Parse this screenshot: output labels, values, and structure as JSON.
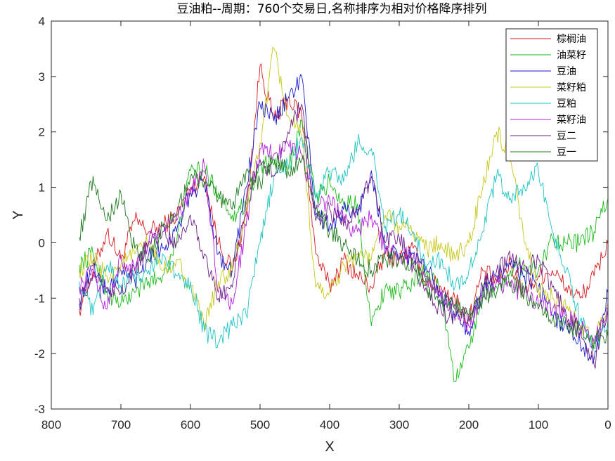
{
  "chart_data": {
    "type": "line",
    "title": "豆油粕--周期：760个交易日,名称排序为相对价格降序排列",
    "xlabel": "X",
    "ylabel": "Y",
    "xlim": [
      800,
      0
    ],
    "ylim": [
      -3,
      4
    ],
    "x_reversed": true,
    "xticks": [
      "800",
      "700",
      "600",
      "500",
      "400",
      "300",
      "200",
      "100",
      "0"
    ],
    "yticks": [
      "-3",
      "-2",
      "-1",
      "0",
      "1",
      "2",
      "3",
      "4"
    ],
    "grid": false,
    "legend_position": "top-right",
    "x": [
      760,
      740,
      720,
      700,
      680,
      660,
      640,
      620,
      600,
      580,
      560,
      540,
      520,
      500,
      480,
      460,
      440,
      420,
      400,
      380,
      360,
      340,
      320,
      300,
      280,
      260,
      240,
      220,
      200,
      180,
      160,
      140,
      120,
      100,
      80,
      60,
      40,
      20,
      0
    ],
    "series": [
      {
        "name": "棕榈油",
        "color": "#d7191c",
        "values": [
          -1.2,
          -0.5,
          0.2,
          -0.3,
          0.4,
          0.2,
          0.3,
          0.5,
          1.0,
          1.2,
          0.0,
          -0.5,
          0.5,
          3.2,
          2.2,
          2.6,
          2.3,
          -0.2,
          -0.8,
          -0.3,
          -0.6,
          -0.8,
          -0.2,
          -0.3,
          -0.1,
          -0.7,
          -0.8,
          -1.0,
          -1.4,
          -0.5,
          -0.7,
          -0.4,
          -0.9,
          -0.6,
          -0.5,
          -0.8,
          -1.0,
          -0.6,
          0.0
        ]
      },
      {
        "name": "油菜籽",
        "color": "#1dbb1d",
        "values": [
          -0.4,
          -0.2,
          -0.9,
          -1.1,
          -0.9,
          -0.7,
          -0.6,
          0.0,
          1.3,
          1.3,
          0.9,
          0.5,
          0.7,
          1.4,
          1.4,
          1.3,
          2.2,
          0.8,
          1.1,
          0.7,
          0.7,
          -1.5,
          -0.8,
          -0.9,
          -0.7,
          -0.5,
          -0.9,
          -2.5,
          -1.9,
          -0.9,
          -0.8,
          -0.5,
          -0.4,
          -0.5,
          0.1,
          0.0,
          0.0,
          0.2,
          0.8
        ]
      },
      {
        "name": "豆油",
        "color": "#1a1acd",
        "values": [
          -1.1,
          -0.4,
          -0.9,
          -0.5,
          -0.7,
          -0.2,
          -0.1,
          0.2,
          0.9,
          1.1,
          -0.2,
          -0.5,
          1.0,
          2.5,
          2.2,
          2.6,
          3.0,
          0.5,
          0.3,
          0.6,
          0.5,
          1.3,
          -0.1,
          -0.3,
          -0.2,
          -0.5,
          -0.9,
          -1.3,
          -1.6,
          -0.8,
          -0.6,
          -0.4,
          -0.6,
          -0.8,
          -1.3,
          -1.5,
          -1.8,
          -2.1,
          -0.9
        ]
      },
      {
        "name": "菜籽粕",
        "color": "#c8c81a",
        "values": [
          -0.5,
          -0.3,
          -0.6,
          -0.4,
          -0.2,
          0.0,
          -0.5,
          -0.3,
          -0.8,
          -1.5,
          -0.7,
          -0.5,
          0.5,
          1.8,
          3.5,
          2.3,
          1.9,
          -0.8,
          -0.9,
          -0.4,
          -0.2,
          -0.3,
          0.5,
          0.3,
          0.2,
          -0.1,
          0.0,
          -0.3,
          0.0,
          1.0,
          2.0,
          1.5,
          0.0,
          -0.8,
          -1.0,
          -1.2,
          -1.5,
          -1.8,
          -1.1
        ]
      },
      {
        "name": "豆粕",
        "color": "#1fc4c4",
        "values": [
          -0.7,
          -1.3,
          -0.4,
          -0.8,
          -0.6,
          -0.5,
          -0.2,
          -0.6,
          -0.7,
          -1.6,
          -1.8,
          -1.5,
          -1.3,
          0.0,
          1.2,
          1.4,
          1.9,
          0.8,
          1.3,
          1.1,
          1.8,
          1.7,
          0.3,
          0.5,
          0.2,
          -0.4,
          -0.3,
          -0.8,
          -0.5,
          0.2,
          1.2,
          0.8,
          1.0,
          1.3,
          0.2,
          -0.5,
          -1.4,
          -1.9,
          -1.4
        ]
      },
      {
        "name": "菜籽油",
        "color": "#b31ee0",
        "values": [
          -0.8,
          -0.5,
          -1.2,
          -0.3,
          -0.5,
          0.0,
          0.3,
          0.4,
          0.9,
          1.4,
          -0.9,
          -1.1,
          0.3,
          1.7,
          1.6,
          1.8,
          1.6,
          0.6,
          0.8,
          0.4,
          0.2,
          0.5,
          -0.2,
          -0.2,
          -0.3,
          -0.6,
          -1.0,
          -1.2,
          -1.5,
          -1.0,
          -0.7,
          -0.8,
          -0.9,
          -1.1,
          -1.2,
          -1.3,
          -1.5,
          -1.8,
          -1.2
        ]
      },
      {
        "name": "豆二",
        "color": "#6d1f8a",
        "values": [
          -1.0,
          -0.6,
          -0.8,
          -0.9,
          -0.5,
          0.0,
          0.2,
          0.0,
          0.5,
          -0.2,
          -1.0,
          -0.8,
          0.8,
          1.5,
          1.2,
          2.0,
          2.5,
          0.4,
          0.6,
          0.3,
          0.6,
          1.2,
          0.0,
          0.1,
          -0.4,
          -0.9,
          -1.2,
          -1.4,
          -1.3,
          -0.8,
          -0.5,
          -0.3,
          -0.5,
          -0.3,
          -0.8,
          -1.3,
          -1.6,
          -2.2,
          -1.2
        ]
      },
      {
        "name": "豆一",
        "color": "#1f7a1f",
        "values": [
          0.1,
          1.2,
          0.4,
          0.9,
          -0.1,
          -0.3,
          0.3,
          0.5,
          1.2,
          1.1,
          0.8,
          0.6,
          1.3,
          1.1,
          1.5,
          1.3,
          1.5,
          0.6,
          0.2,
          0.0,
          -0.3,
          -0.5,
          -0.3,
          -0.3,
          -0.4,
          -0.8,
          -1.1,
          -1.1,
          -1.3,
          -1.0,
          -0.9,
          -0.7,
          -0.9,
          -1.2,
          -1.4,
          -1.5,
          -1.6,
          -1.8,
          -1.7
        ]
      }
    ]
  }
}
